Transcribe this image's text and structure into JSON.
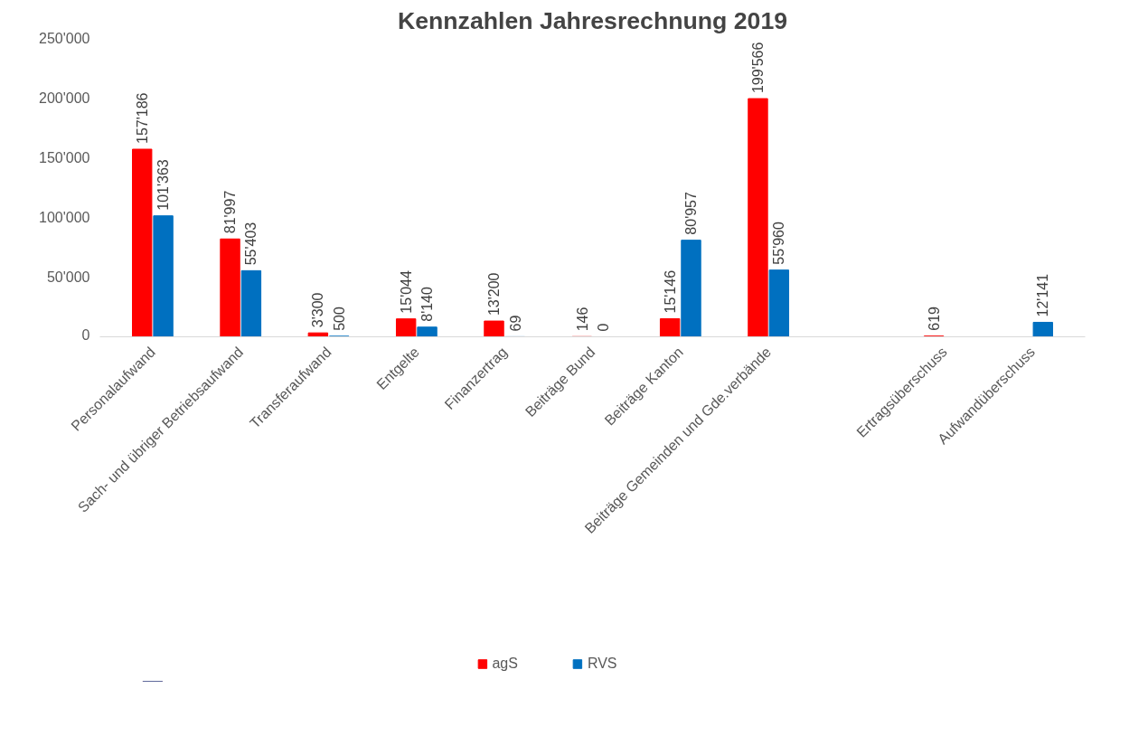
{
  "chart_data": {
    "type": "bar",
    "title": "Kennzahlen Jahresrechnung 2019",
    "categories": [
      "Personalaufwand",
      "Sach- und übriger Betriebsaufwand",
      "Transferaufwand",
      "Entgelte",
      "Finanzertrag",
      "Beiträge Bund",
      "Beiträge Kanton",
      "Beiträge Gemeinden und Gde.verbände",
      null,
      "Ertragsüberschuss",
      "Aufwandüberschuss"
    ],
    "series": [
      {
        "name": "agS",
        "color": "#ff0000",
        "values": [
          157186,
          81997,
          3300,
          15044,
          13200,
          146,
          15146,
          199566,
          null,
          619,
          null
        ],
        "value_labels": [
          "157'186",
          "81'997",
          "3'300",
          "15'044",
          "13'200",
          "146",
          "15'146",
          "199'566",
          null,
          "619",
          null
        ]
      },
      {
        "name": "RVS",
        "color": "#0070c0",
        "values": [
          101363,
          55403,
          500,
          8140,
          69,
          0,
          80957,
          55960,
          null,
          null,
          12141
        ],
        "value_labels": [
          "101'363",
          "55'403",
          "500",
          "8'140",
          "69",
          "0",
          "80'957",
          "55'960",
          null,
          null,
          "12'141"
        ]
      }
    ],
    "ylim": [
      0,
      250000
    ],
    "yticks": [
      {
        "value": 0,
        "label": "0"
      },
      {
        "value": 50000,
        "label": "50'000"
      },
      {
        "value": 100000,
        "label": "100'000"
      },
      {
        "value": 150000,
        "label": "150'000"
      },
      {
        "value": 200000,
        "label": "200'000"
      },
      {
        "value": 250000,
        "label": "250'000"
      }
    ],
    "grid": false,
    "legend": "bottom"
  }
}
